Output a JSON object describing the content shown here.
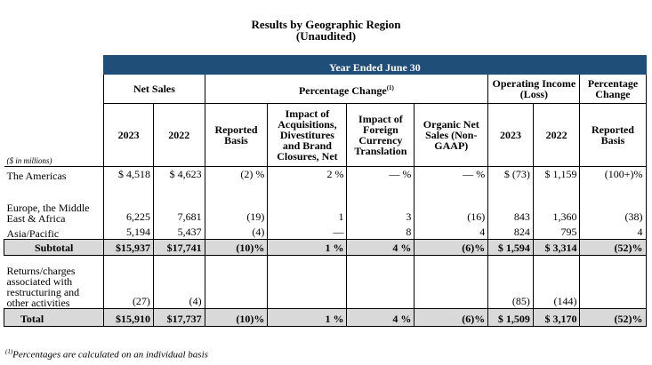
{
  "title": "Results by Geographic Region",
  "subtitle": "(Unaudited)",
  "period_header": "Year Ended June 30",
  "group_headers": {
    "net_sales": "Net Sales",
    "pct_change": "Percentage Change",
    "pct_change_sup": "(1)",
    "operating_income": "Operating Income (Loss)",
    "percentage_change": "Percentage Change"
  },
  "sub_headers": {
    "y2023": "2023",
    "y2022": "2022",
    "reported_basis": "Reported Basis",
    "impact_acq": "Impact of Acquisitions, Divestitures and Brand Closures, Net",
    "impact_fx": "Impact of Foreign Currency Translation",
    "organic": "Organic Net Sales (Non-GAAP)",
    "oi_2023": "2023",
    "oi_2022": "2022",
    "reported_basis2": "Reported Basis"
  },
  "units": "($ in millions)",
  "rows": [
    {
      "label": "The Americas",
      "ns23": "$ 4,518",
      "ns22": "$ 4,623",
      "rep": "(2) %",
      "acq": "2 %",
      "fx": "— %",
      "org": "— %",
      "oi23": "$    (73)",
      "oi22": "$ 1,159",
      "oirep": "(100+)%"
    },
    {
      "label": "Europe, the Middle East & Africa",
      "ns23": "6,225",
      "ns22": "7,681",
      "rep": "(19)",
      "acq": "1",
      "fx": "3",
      "org": "(16)",
      "oi23": "843",
      "oi22": "1,360",
      "oirep": "(38)"
    },
    {
      "label": "Asia/Pacific",
      "ns23": "5,194",
      "ns22": "5,437",
      "rep": "(4)",
      "acq": "—",
      "fx": "8",
      "org": "4",
      "oi23": "824",
      "oi22": "795",
      "oirep": "4"
    }
  ],
  "subtotal": {
    "label": "Subtotal",
    "ns23": "$15,937",
    "ns22": "$17,741",
    "rep": "(10)%",
    "acq": "1 %",
    "fx": "4 %",
    "org": "(6)%",
    "oi23": "$ 1,594",
    "oi22": "$ 3,314",
    "oirep": "(52)%"
  },
  "returns": {
    "label": "Returns/charges associated with restructuring and other activities",
    "ns23": "(27)",
    "ns22": "(4)",
    "oi23": "(85)",
    "oi22": "(144)"
  },
  "total": {
    "label": "Total",
    "ns23": "$15,910",
    "ns22": "$17,737",
    "rep": "(10)%",
    "acq": "1 %",
    "fx": "4 %",
    "org": "(6)%",
    "oi23": "$ 1,509",
    "oi22": "$ 3,170",
    "oirep": "(52)%"
  },
  "footnote_sup": "(1)",
  "footnote": "Percentages are calculated on an individual basis",
  "colors": {
    "header_bg": "#1f4e79",
    "subtotal_bg": "#d9d9d9"
  }
}
